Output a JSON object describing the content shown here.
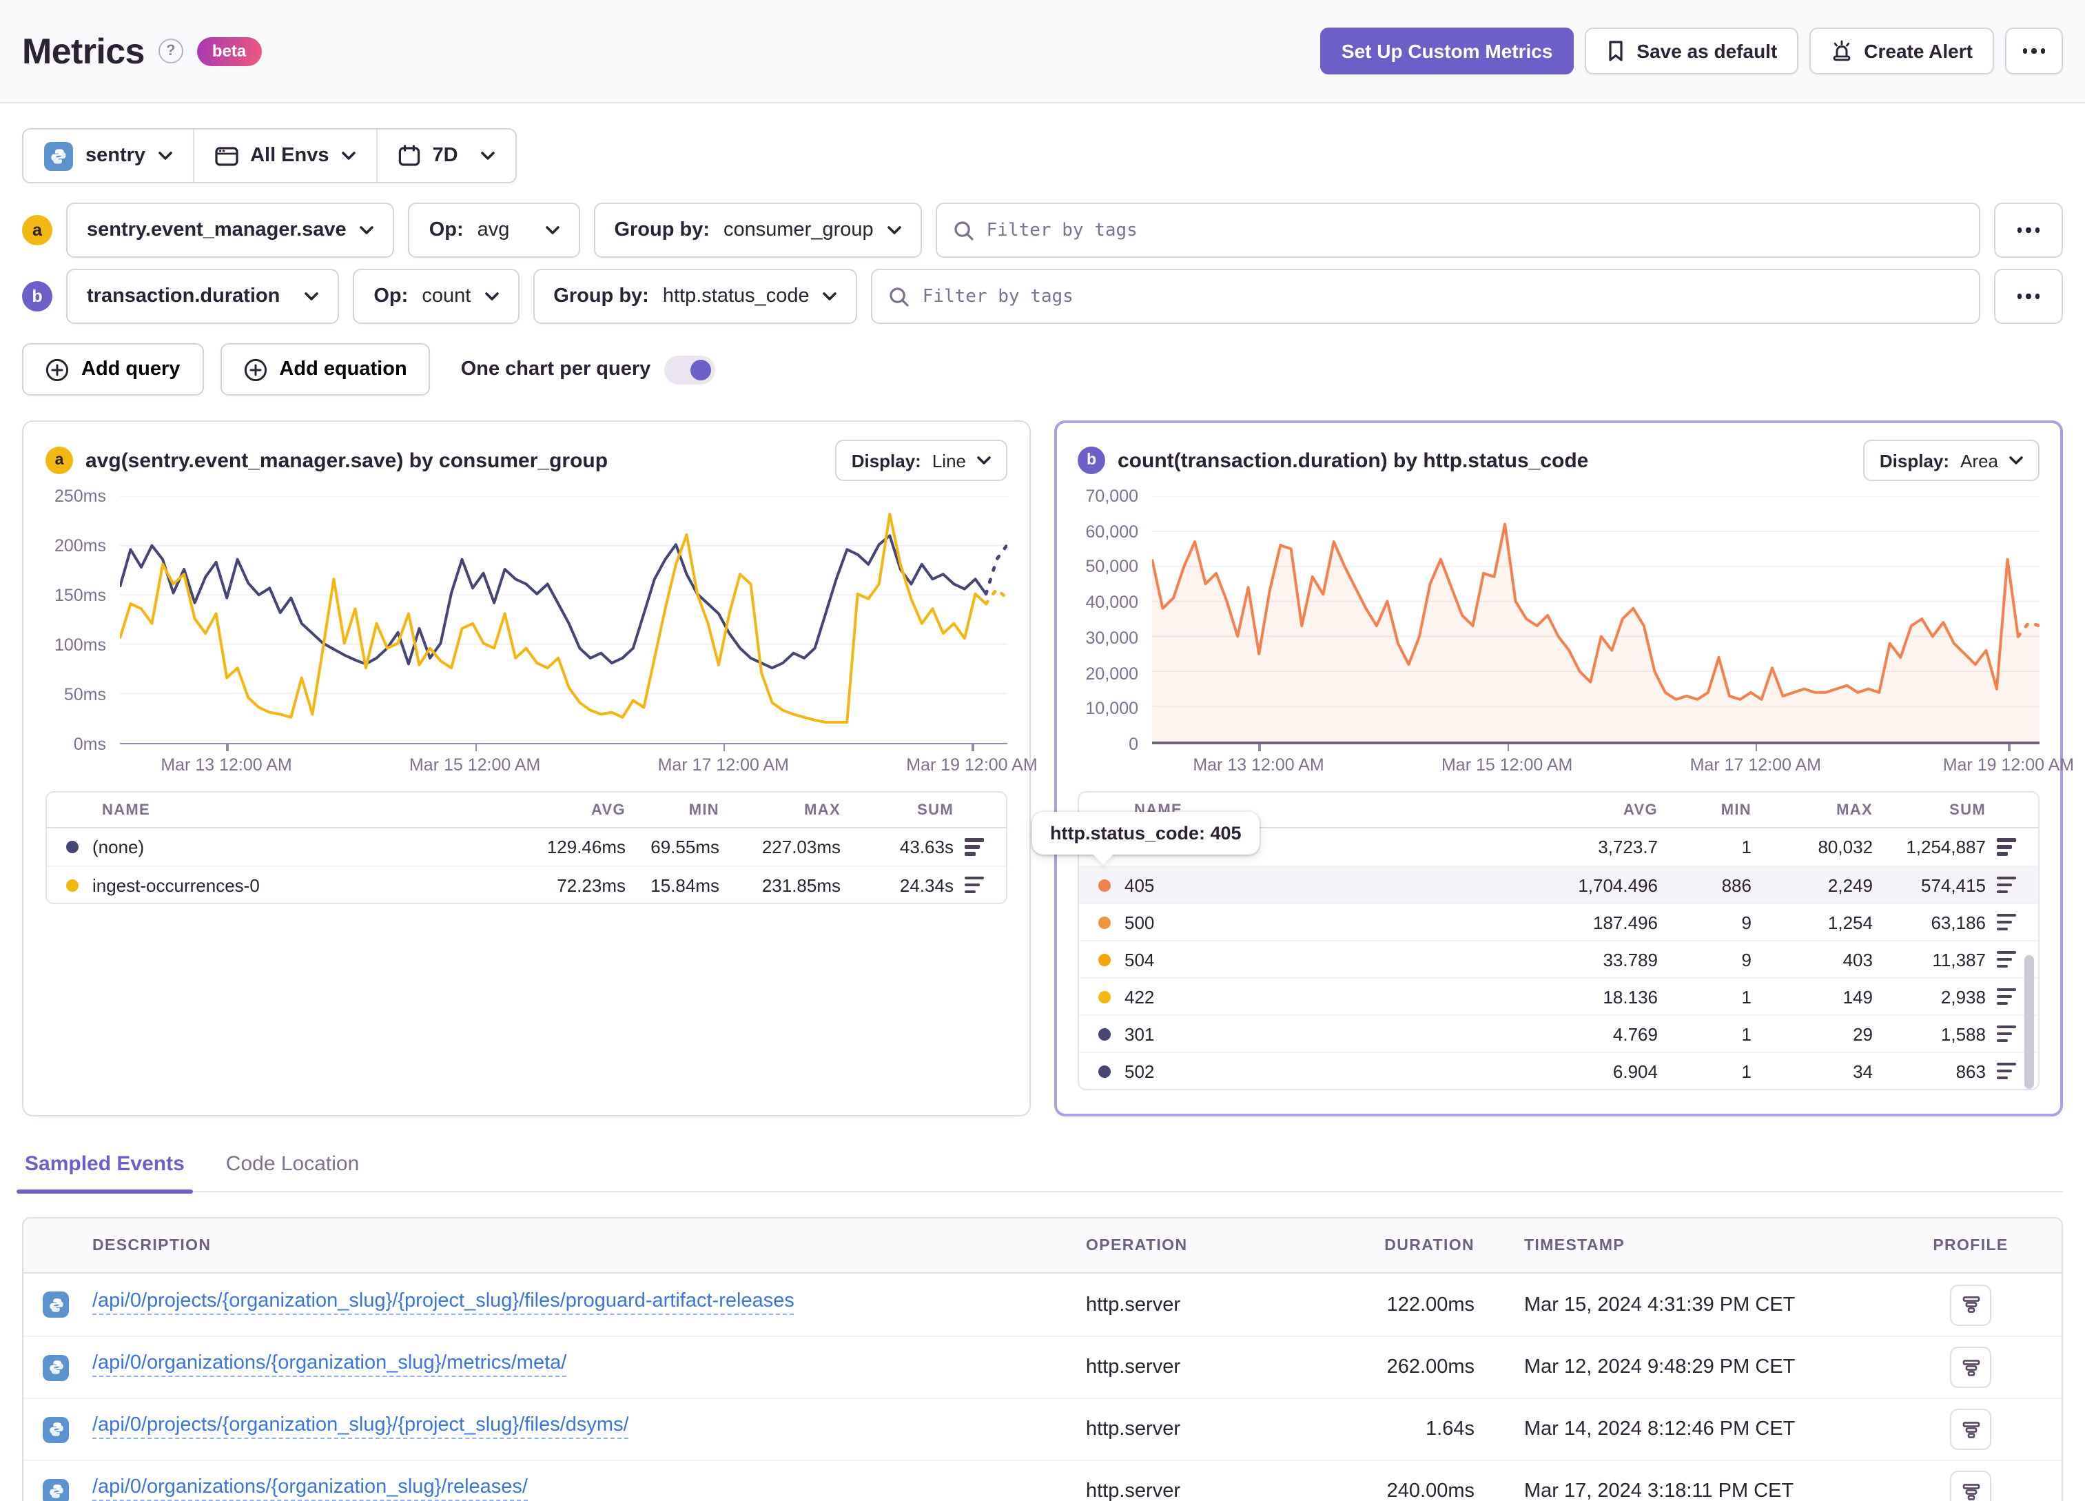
{
  "colors": {
    "purple": "#6C5FC7",
    "yellow": "#F2B712",
    "navy": "#444674",
    "orange": "#F38150",
    "link_blue": "#3C74DD"
  },
  "header": {
    "title": "Metrics",
    "beta_label": "beta",
    "buttons": {
      "custom_metrics": "Set Up Custom Metrics",
      "save_default": "Save as default",
      "create_alert": "Create Alert"
    }
  },
  "filters": {
    "project": "sentry",
    "environment": "All Envs",
    "period": "7D"
  },
  "queries": [
    {
      "badge": "a",
      "metric": "sentry.event_manager.save",
      "op_label": "Op:",
      "op": "avg",
      "groupby_label": "Group by:",
      "groupby": "consumer_group",
      "filter_placeholder": "Filter by tags"
    },
    {
      "badge": "b",
      "metric": "transaction.duration",
      "op_label": "Op:",
      "op": "count",
      "groupby_label": "Group by:",
      "groupby": "http.status_code",
      "filter_placeholder": "Filter by tags"
    }
  ],
  "actions": {
    "add_query": "Add query",
    "add_equation": "Add equation",
    "one_chart_toggle": "One chart per query"
  },
  "charts": [
    {
      "badge": "a",
      "title": "avg(sentry.event_manager.save) by consumer_group",
      "display_label": "Display:",
      "display_value": "Line",
      "chart_data": {
        "type": "line",
        "unit": "ms",
        "ylim": [
          0,
          250
        ],
        "yticks": [
          "250ms",
          "200ms",
          "150ms",
          "100ms",
          "50ms",
          "0ms"
        ],
        "xticks": [
          {
            "label": "Mar 13 12:00 AM",
            "pos": 0.12
          },
          {
            "label": "Mar 15 12:00 AM",
            "pos": 0.4
          },
          {
            "label": "Mar 17 12:00 AM",
            "pos": 0.68
          },
          {
            "label": "Mar 19 12:00 AM",
            "pos": 0.96
          }
        ],
        "series": [
          {
            "name": "(none)",
            "color": "#444674",
            "area": false,
            "values": [
              158,
              196,
              178,
              200,
              186,
              152,
              176,
              142,
              168,
              183,
              147,
              186,
              162,
              150,
              157,
              132,
              147,
              121,
              111,
              101,
              95,
              89,
              84,
              80,
              86,
              96,
              112,
              80,
              116,
              86,
              101,
              152,
              186,
              157,
              172,
              142,
              176,
              166,
              161,
              151,
              161,
              141,
              121,
              96,
              86,
              91,
              81,
              86,
              96,
              131,
              166,
              186,
              201,
              171,
              151,
              141,
              131,
              111,
              96,
              86,
              81,
              76,
              81,
              91,
              86,
              96,
              131,
              166,
              196,
              191,
              181,
              201,
              210,
              176,
              161,
              181,
              166,
              171,
              161,
              156,
              166,
              151,
              186,
              201
            ]
          },
          {
            "name": "ingest-occurrences-0",
            "color": "#F2B712",
            "area": false,
            "values": [
              106,
              141,
              136,
              121,
              181,
              161,
              171,
              126,
              111,
              131,
              66,
              76,
              46,
              36,
              31,
              29,
              26,
              66,
              29,
              96,
              166,
              101,
              136,
              76,
              121,
              96,
              101,
              131,
              79,
              96,
              83,
              76,
              116,
              121,
              101,
              96,
              131,
              86,
              96,
              81,
              76,
              86,
              56,
              41,
              33,
              29,
              31,
              26,
              43,
              36,
              86,
              136,
              181,
              211,
              151,
              121,
              79,
              131,
              171,
              161,
              71,
              41,
              33,
              29,
              26,
              23,
              21,
              21,
              21,
              151,
              146,
              161,
              232,
              181,
              146,
              121,
              136,
              111,
              121,
              106,
              151,
              141,
              156,
              146
            ]
          }
        ]
      },
      "table": {
        "headers": [
          "NAME",
          "AVG",
          "MIN",
          "MAX",
          "SUM"
        ],
        "rows": [
          {
            "name": "(none)",
            "color": "#444674",
            "avg": "129.46ms",
            "min": "69.55ms",
            "max": "227.03ms",
            "sum": "43.63s"
          },
          {
            "name": "ingest-occurrences-0",
            "color": "#F2B712",
            "avg": "72.23ms",
            "min": "15.84ms",
            "max": "231.85ms",
            "sum": "24.34s"
          }
        ]
      }
    },
    {
      "badge": "b",
      "title": "count(transaction.duration) by http.status_code",
      "display_label": "Display:",
      "display_value": "Area",
      "chart_data": {
        "type": "area",
        "unit": "count",
        "ylim": [
          0,
          70000
        ],
        "yticks": [
          "70,000",
          "60,000",
          "50,000",
          "40,000",
          "30,000",
          "20,000",
          "10,000",
          "0"
        ],
        "xticks": [
          {
            "label": "Mar 13 12:00 AM",
            "pos": 0.12
          },
          {
            "label": "Mar 15 12:00 AM",
            "pos": 0.4
          },
          {
            "label": "Mar 17 12:00 AM",
            "pos": 0.68
          },
          {
            "label": "Mar 19 12:00 AM",
            "pos": 0.965
          }
        ],
        "series": [
          {
            "name": "405",
            "color": "#F38150",
            "area": true,
            "values": [
              52000,
              38000,
              41000,
              50000,
              57000,
              45000,
              48000,
              40000,
              30000,
              44000,
              25000,
              43000,
              56000,
              55000,
              33000,
              47000,
              42000,
              57000,
              50000,
              44000,
              38000,
              33000,
              40000,
              28000,
              22000,
              30000,
              45000,
              52000,
              44000,
              36000,
              33000,
              48000,
              47000,
              62000,
              40000,
              35000,
              33000,
              36000,
              30000,
              26000,
              20000,
              17000,
              30000,
              26000,
              35000,
              38000,
              33000,
              20000,
              14000,
              12000,
              13000,
              12000,
              14000,
              24000,
              13000,
              12000,
              14000,
              12000,
              21000,
              13000,
              14000,
              15000,
              14000,
              14000,
              15000,
              16000,
              14000,
              15000,
              14000,
              28000,
              24000,
              33000,
              35000,
              30000,
              34000,
              28000,
              25000,
              22000,
              26000,
              15000,
              52000,
              30000,
              34000,
              33000
            ]
          }
        ]
      },
      "table": {
        "headers": [
          "NAME",
          "AVG",
          "MIN",
          "MAX",
          "SUM"
        ],
        "rows": [
          {
            "name": "",
            "color": "",
            "avg": "3,723.7",
            "min": "1",
            "max": "80,032",
            "sum": "1,254,887"
          },
          {
            "name": "405",
            "color": "#F0814E",
            "avg": "1,704.496",
            "min": "886",
            "max": "2,249",
            "sum": "574,415"
          },
          {
            "name": "500",
            "color": "#F0953C",
            "avg": "187.496",
            "min": "9",
            "max": "1,254",
            "sum": "63,186"
          },
          {
            "name": "504",
            "color": "#F2A60B",
            "avg": "33.789",
            "min": "9",
            "max": "403",
            "sum": "11,387"
          },
          {
            "name": "422",
            "color": "#F2B712",
            "avg": "18.136",
            "min": "1",
            "max": "149",
            "sum": "2,938"
          },
          {
            "name": "301",
            "color": "#444674",
            "avg": "4.769",
            "min": "1",
            "max": "29",
            "sum": "1,588"
          },
          {
            "name": "502",
            "color": "#444674",
            "avg": "6.904",
            "min": "1",
            "max": "34",
            "sum": "863"
          }
        ]
      }
    }
  ],
  "tooltip": {
    "text": "http.status_code: 405"
  },
  "tabs": [
    {
      "label": "Sampled Events"
    },
    {
      "label": "Code Location"
    }
  ],
  "events_table": {
    "headers": {
      "description": "DESCRIPTION",
      "operation": "OPERATION",
      "duration": "DURATION",
      "timestamp": "TIMESTAMP",
      "profile": "PROFILE"
    },
    "rows": [
      {
        "description": "/api/0/projects/{organization_slug}/{project_slug}/files/proguard-artifact-releases",
        "operation": "http.server",
        "duration": "122.00ms",
        "timestamp": "Mar 15, 2024 4:31:39 PM CET"
      },
      {
        "description": "/api/0/organizations/{organization_slug}/metrics/meta/",
        "operation": "http.server",
        "duration": "262.00ms",
        "timestamp": "Mar 12, 2024 9:48:29 PM CET"
      },
      {
        "description": "/api/0/projects/{organization_slug}/{project_slug}/files/dsyms/",
        "operation": "http.server",
        "duration": "1.64s",
        "timestamp": "Mar 14, 2024 8:12:46 PM CET"
      },
      {
        "description": "/api/0/organizations/{organization_slug}/releases/",
        "operation": "http.server",
        "duration": "240.00ms",
        "timestamp": "Mar 17, 2024 3:18:11 PM CET"
      }
    ]
  }
}
